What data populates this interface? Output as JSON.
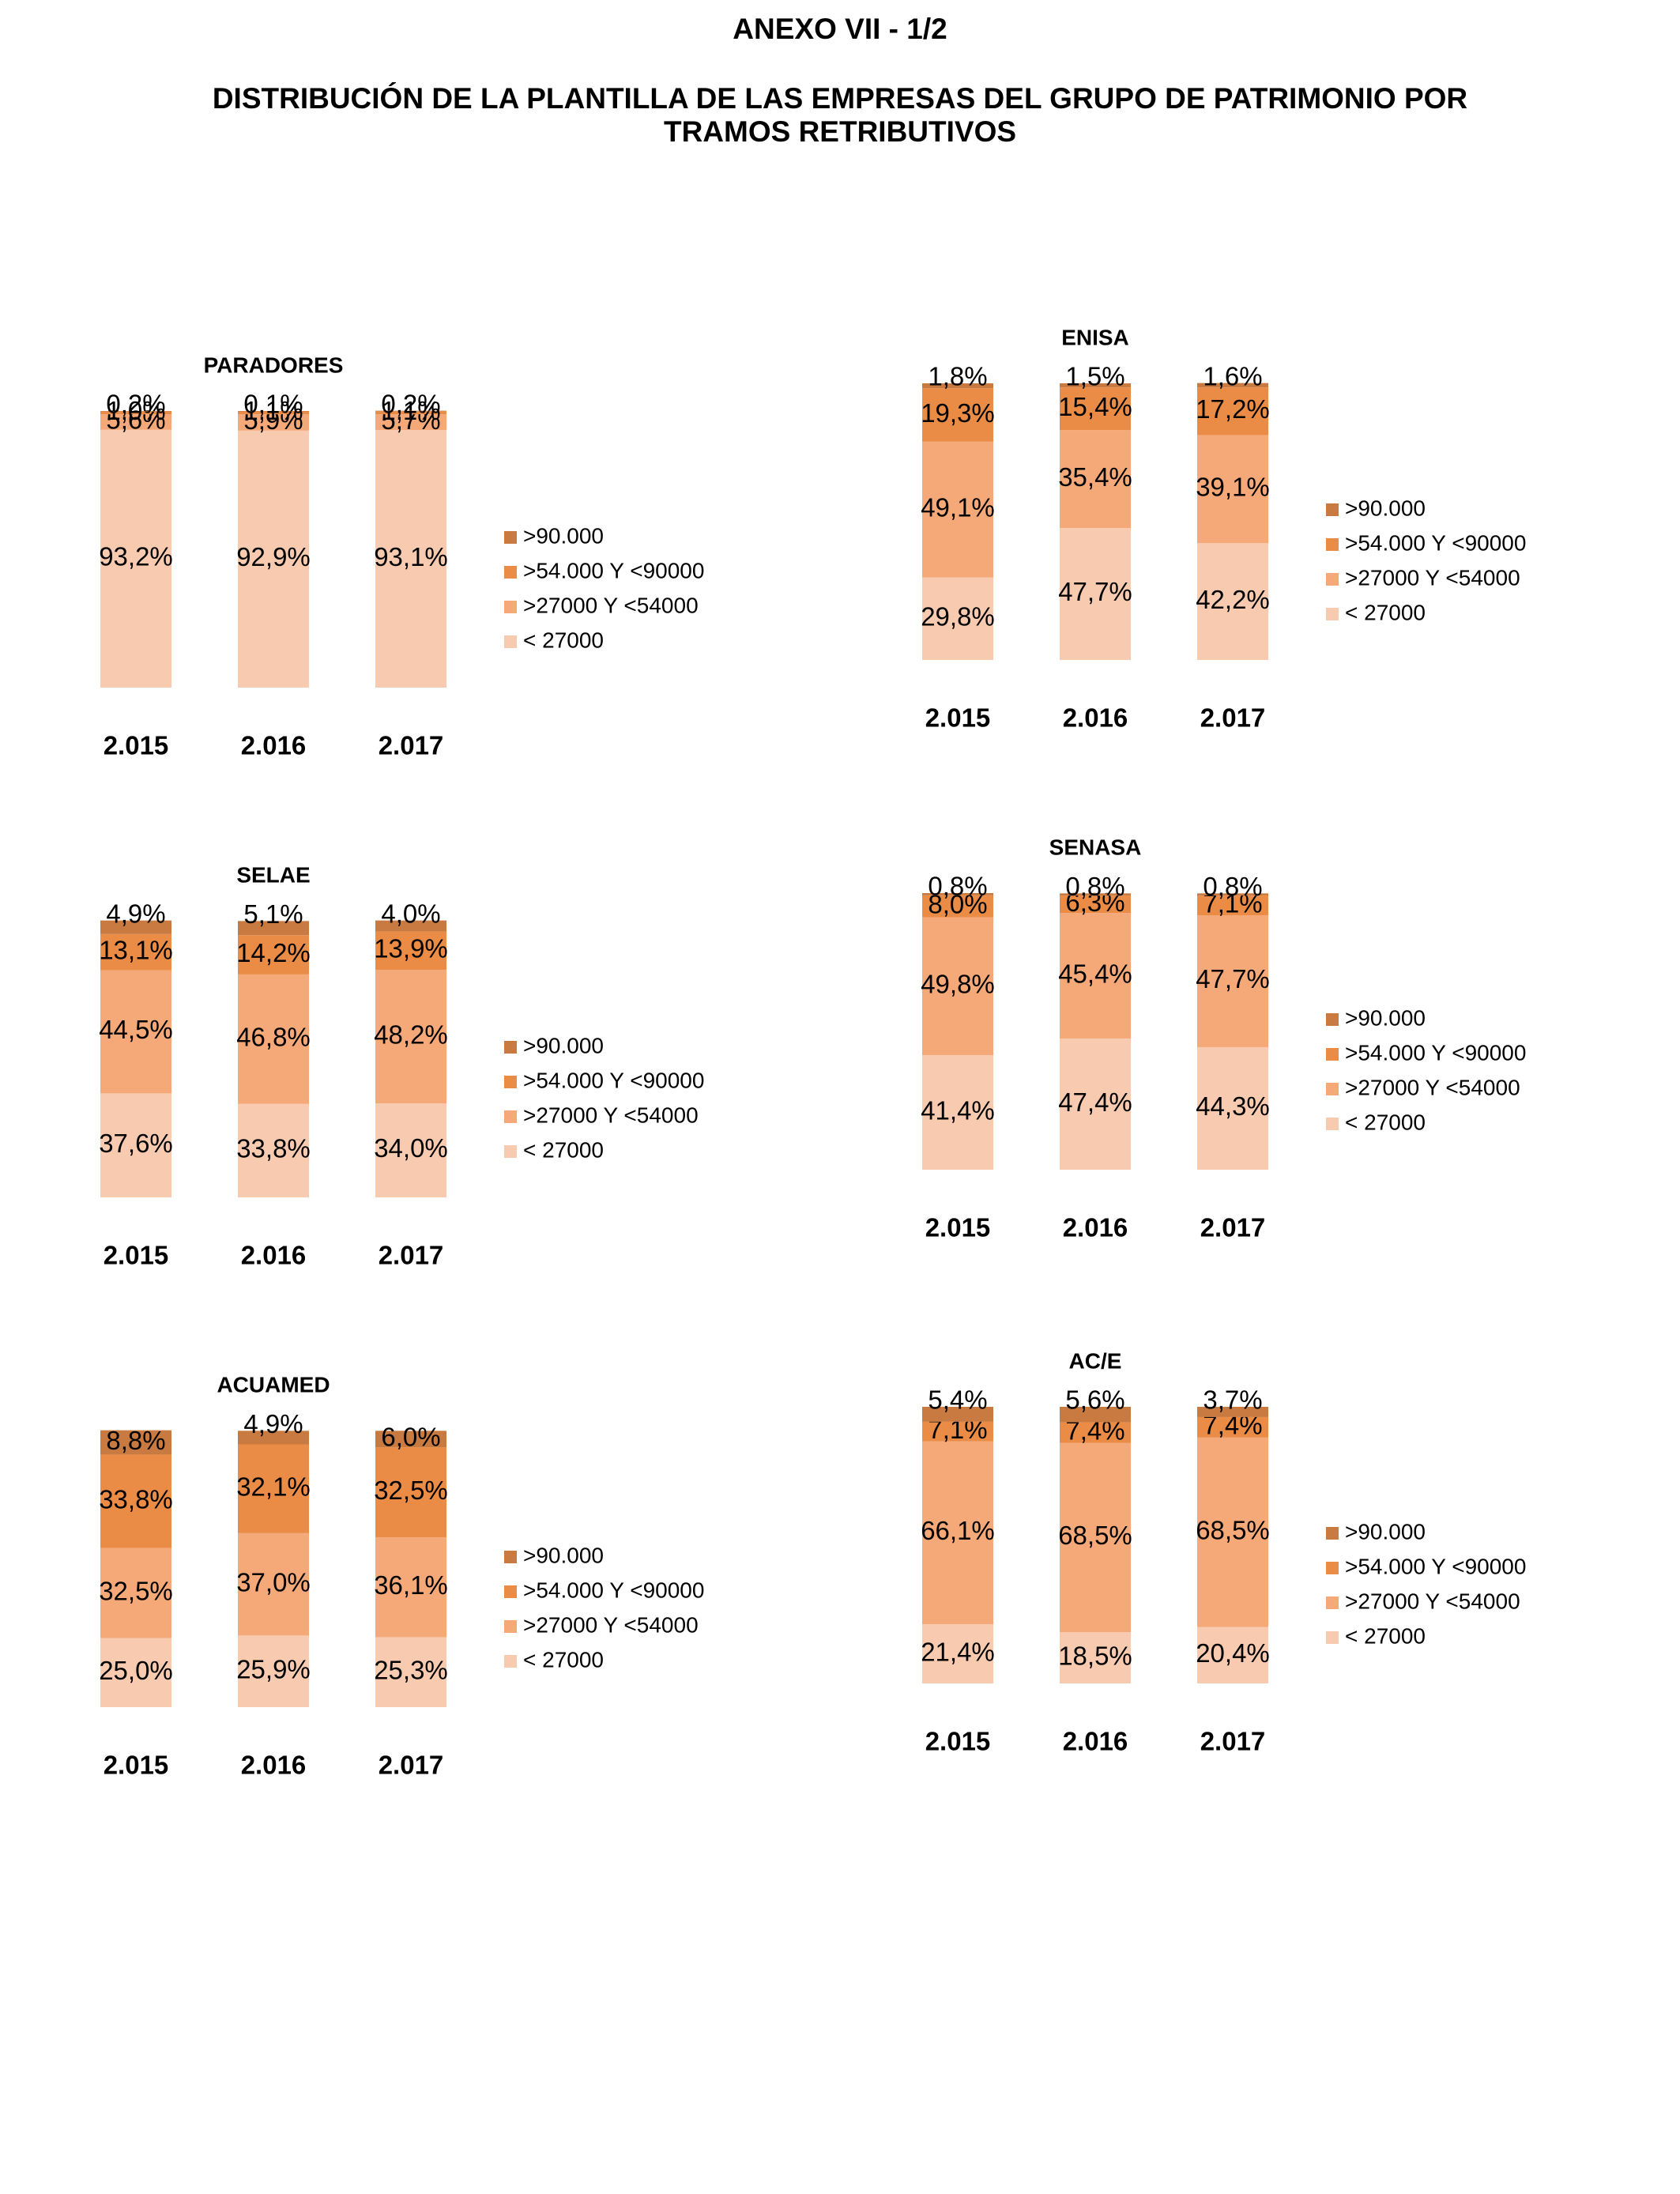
{
  "page": {
    "title": "ANEXO VII - 1/2",
    "subtitle_line1": "DISTRIBUCIÓN DE LA PLANTILLA DE LAS EMPRESAS DEL GRUPO DE PATRIMONIO POR",
    "subtitle_line2": "TRAMOS RETRIBUTIVOS"
  },
  "colors": {
    "lt27000": "#f8cbb0",
    "r27000_54000": "#f5a878",
    "r54000_90000": "#ea8c46",
    "gt90000": "#c97a40"
  },
  "chart_data": [
    {
      "type": "bar",
      "stacked": true,
      "title": "PARADORES",
      "categories": [
        "2.015",
        "2.016",
        "2.017"
      ],
      "series": [
        {
          "name": "< 27000",
          "values": [
            93.2,
            92.9,
            93.1
          ],
          "labels": [
            "93,2%",
            "92,9%",
            "93,1%"
          ]
        },
        {
          "name": ">27000 Y <54000",
          "values": [
            5.6,
            5.9,
            5.7
          ],
          "labels": [
            "5,6%",
            "5,9%",
            "5,7%"
          ]
        },
        {
          "name": ">54.000 Y <90000",
          "values": [
            1.0,
            1.1,
            1.1
          ],
          "labels": [
            "1,0%",
            "1,1%",
            "1,1%"
          ]
        },
        {
          "name": ">90.000",
          "values": [
            0.2,
            0.1,
            0.2
          ],
          "labels": [
            "0,2%",
            "0,1%",
            "0,2%"
          ]
        }
      ],
      "ylim": [
        0,
        100
      ],
      "legend_position": "right"
    },
    {
      "type": "bar",
      "stacked": true,
      "title": "ENISA",
      "categories": [
        "2.015",
        "2.016",
        "2.017"
      ],
      "series": [
        {
          "name": "< 27000",
          "values": [
            29.8,
            47.7,
            42.2
          ],
          "labels": [
            "29,8%",
            "47,7%",
            "42,2%"
          ]
        },
        {
          "name": ">27000 Y <54000",
          "values": [
            49.1,
            35.4,
            39.1
          ],
          "labels": [
            "49,1%",
            "35,4%",
            "39,1%"
          ]
        },
        {
          "name": ">54.000 Y <90000",
          "values": [
            19.3,
            15.4,
            17.2
          ],
          "labels": [
            "19,3%",
            "15,4%",
            "17,2%"
          ]
        },
        {
          "name": ">90.000",
          "values": [
            1.8,
            1.5,
            1.6
          ],
          "labels": [
            "1,8%",
            "1,5%",
            "1,6%"
          ]
        }
      ],
      "ylim": [
        0,
        100
      ],
      "legend_position": "right"
    },
    {
      "type": "bar",
      "stacked": true,
      "title": "SELAE",
      "categories": [
        "2.015",
        "2.016",
        "2.017"
      ],
      "series": [
        {
          "name": "< 27000",
          "values": [
            37.6,
            33.8,
            34.0
          ],
          "labels": [
            "37,6%",
            "33,8%",
            "34,0%"
          ]
        },
        {
          "name": ">27000 Y <54000",
          "values": [
            44.5,
            46.8,
            48.2
          ],
          "labels": [
            "44,5%",
            "46,8%",
            "48,2%"
          ]
        },
        {
          "name": ">54.000 Y <90000",
          "values": [
            13.1,
            14.2,
            13.9
          ],
          "labels": [
            "13,1%",
            "14,2%",
            "13,9%"
          ]
        },
        {
          "name": ">90.000",
          "values": [
            4.9,
            5.1,
            4.0
          ],
          "labels": [
            "4,9%",
            "5,1%",
            "4,0%"
          ]
        }
      ],
      "ylim": [
        0,
        100
      ],
      "legend_position": "right"
    },
    {
      "type": "bar",
      "stacked": true,
      "title": "SENASA",
      "categories": [
        "2.015",
        "2.016",
        "2.017"
      ],
      "series": [
        {
          "name": "< 27000",
          "values": [
            41.4,
            47.4,
            44.3
          ],
          "labels": [
            "41,4%",
            "47,4%",
            "44,3%"
          ]
        },
        {
          "name": ">27000 Y <54000",
          "values": [
            49.8,
            45.4,
            47.7
          ],
          "labels": [
            "49,8%",
            "45,4%",
            "47,7%"
          ]
        },
        {
          "name": ">54.000 Y <90000",
          "values": [
            8.0,
            6.3,
            7.1
          ],
          "labels": [
            "8,0%",
            "6,3%",
            "7,1%"
          ]
        },
        {
          "name": ">90.000",
          "values": [
            0.8,
            0.8,
            0.8
          ],
          "labels": [
            "0,8%",
            "0,8%",
            "0,8%"
          ]
        }
      ],
      "ylim": [
        0,
        100
      ],
      "legend_position": "right"
    },
    {
      "type": "bar",
      "stacked": true,
      "title": "ACUAMED",
      "categories": [
        "2.015",
        "2.016",
        "2.017"
      ],
      "series": [
        {
          "name": "< 27000",
          "values": [
            25.0,
            25.9,
            25.3
          ],
          "labels": [
            "25,0%",
            "25,9%",
            "25,3%"
          ]
        },
        {
          "name": ">27000 Y <54000",
          "values": [
            32.5,
            37.0,
            36.1
          ],
          "labels": [
            "32,5%",
            "37,0%",
            "36,1%"
          ]
        },
        {
          "name": ">54.000 Y <90000",
          "values": [
            33.8,
            32.1,
            32.5
          ],
          "labels": [
            "33,8%",
            "32,1%",
            "32,5%"
          ]
        },
        {
          "name": ">90.000",
          "values": [
            8.8,
            4.9,
            6.0
          ],
          "labels": [
            "8,8%",
            "4,9%",
            "6,0%"
          ]
        }
      ],
      "ylim": [
        0,
        100
      ],
      "legend_position": "right"
    },
    {
      "type": "bar",
      "stacked": true,
      "title": "AC/E",
      "categories": [
        "2.015",
        "2.016",
        "2.017"
      ],
      "series": [
        {
          "name": "< 27000",
          "values": [
            21.4,
            18.5,
            20.4
          ],
          "labels": [
            "21,4%",
            "18,5%",
            "20,4%"
          ]
        },
        {
          "name": ">27000 Y <54000",
          "values": [
            66.1,
            68.5,
            68.5
          ],
          "labels": [
            "66,1%",
            "68,5%",
            "68,5%"
          ]
        },
        {
          "name": ">54.000 Y <90000",
          "values": [
            7.1,
            7.4,
            7.4
          ],
          "labels": [
            "7,1%",
            "7,4%",
            "7,4%"
          ]
        },
        {
          "name": ">90.000",
          "values": [
            5.4,
            5.6,
            3.7
          ],
          "labels": [
            "5,4%",
            "5,6%",
            "3,7%"
          ]
        }
      ],
      "ylim": [
        0,
        100
      ],
      "legend_position": "right"
    }
  ]
}
